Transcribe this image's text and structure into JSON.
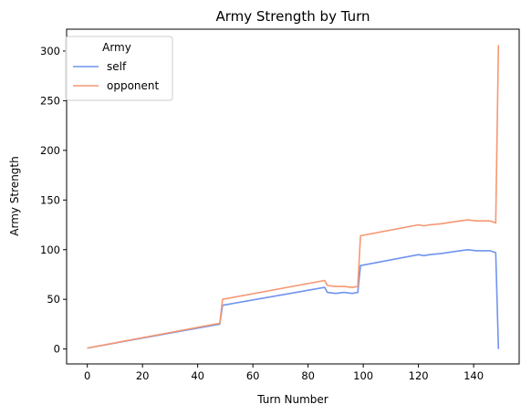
{
  "chart_data": {
    "type": "line",
    "title": "Army Strength by Turn",
    "xlabel": "Turn Number",
    "ylabel": "Army Strength",
    "xlim": [
      -7.5,
      156.5
    ],
    "ylim": [
      -15,
      322
    ],
    "xticks": [
      0,
      20,
      40,
      60,
      80,
      100,
      120,
      140
    ],
    "yticks": [
      0,
      50,
      100,
      150,
      200,
      250,
      300
    ],
    "grid": false,
    "legend": {
      "title": "Army",
      "placement": "top-left"
    },
    "series": [
      {
        "name": "self",
        "color": "#6f93ee",
        "points": [
          [
            0,
            1
          ],
          [
            48,
            25
          ],
          [
            49,
            44
          ],
          [
            86,
            62
          ],
          [
            87,
            57
          ],
          [
            90,
            56
          ],
          [
            93,
            57
          ],
          [
            96,
            56
          ],
          [
            98,
            57
          ],
          [
            99,
            84
          ],
          [
            120,
            95
          ],
          [
            122,
            94
          ],
          [
            124,
            95
          ],
          [
            128,
            96
          ],
          [
            135,
            99
          ],
          [
            138,
            100
          ],
          [
            141,
            99
          ],
          [
            146,
            99
          ],
          [
            148,
            97
          ],
          [
            149,
            0
          ]
        ]
      },
      {
        "name": "opponent",
        "color": "#f69772",
        "points": [
          [
            0,
            1
          ],
          [
            48,
            26
          ],
          [
            49,
            50
          ],
          [
            86,
            69
          ],
          [
            87,
            64
          ],
          [
            90,
            63
          ],
          [
            93,
            63
          ],
          [
            96,
            62
          ],
          [
            98,
            63
          ],
          [
            99,
            114
          ],
          [
            120,
            125
          ],
          [
            122,
            124
          ],
          [
            124,
            125
          ],
          [
            128,
            126
          ],
          [
            135,
            129
          ],
          [
            138,
            130
          ],
          [
            141,
            129
          ],
          [
            146,
            129
          ],
          [
            148,
            127
          ],
          [
            149,
            306
          ]
        ]
      }
    ]
  }
}
